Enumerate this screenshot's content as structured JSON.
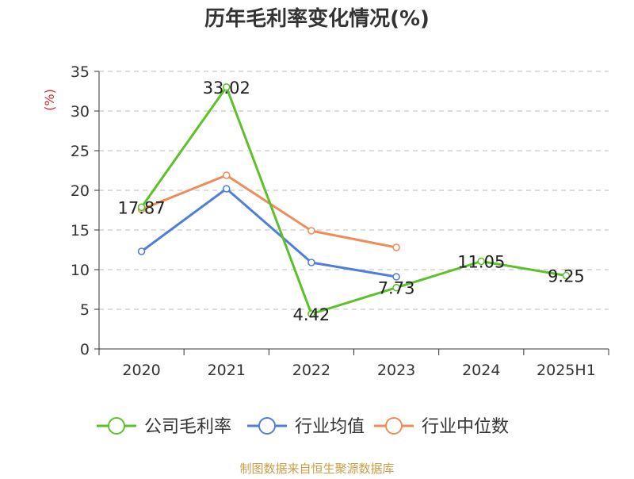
{
  "chart_data": {
    "type": "line",
    "title": "历年毛利率变化情况(%)",
    "ylabel": "(%)",
    "xlabel": "",
    "categories": [
      "2020",
      "2021",
      "2022",
      "2023",
      "2024",
      "2025H1"
    ],
    "ylim": [
      0,
      35
    ],
    "yticks": [
      0,
      5,
      10,
      15,
      20,
      25,
      30,
      35
    ],
    "grid": true,
    "legend_position": "bottom",
    "series": [
      {
        "name": "公司毛利率",
        "color": "#5dc12c",
        "values": [
          17.87,
          33.02,
          4.42,
          7.73,
          11.05,
          9.25
        ],
        "labels": [
          "17.87",
          "33.02",
          "4.42",
          "7.73",
          "11.05",
          "9.25"
        ]
      },
      {
        "name": "行业均值",
        "color": "#4f7fdb",
        "values": [
          12.3,
          20.2,
          10.9,
          9.1,
          null,
          null
        ]
      },
      {
        "name": "行业中位数",
        "color": "#f08c58",
        "values": [
          17.6,
          21.9,
          14.9,
          12.8,
          null,
          null
        ]
      }
    ]
  },
  "footer": {
    "source": "制图数据来自恒生聚源数据库"
  }
}
